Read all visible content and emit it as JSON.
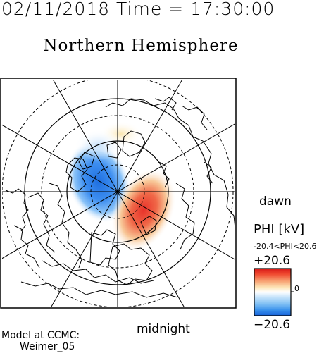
{
  "header": {
    "date_time": "02/11/2018 Time = 17:30:00"
  },
  "title": "Northern Hemisphere",
  "map": {
    "hemisphere": "north",
    "latitude_circles_dashed": 3,
    "meridian_lines": 6,
    "colors": {
      "positive": "#e03020",
      "negative": "#2070e0",
      "neutral": "#ffffff"
    }
  },
  "labels": {
    "dawn": "dawn",
    "midnight": "midnight"
  },
  "colorbar": {
    "title": "PHI [kV]",
    "range_text": "-20.4<PHI<20.6",
    "max_label": "+20.6",
    "min_label": "−20.6",
    "zero_label": "0",
    "max_value": 20.6,
    "min_value": -20.6
  },
  "model": {
    "line1": "Model at CCMC:",
    "line2": "Weimer_05"
  }
}
